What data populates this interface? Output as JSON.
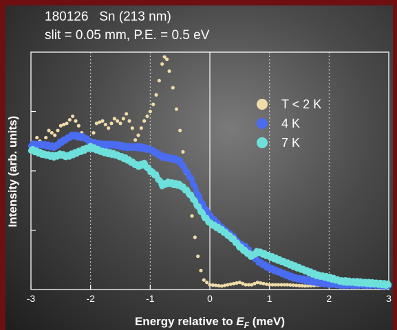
{
  "chart_data": {
    "type": "scatter",
    "header_line1": "180126   Sn (213 nm)",
    "header_line2": "slit = 0.05 mm, P.E. = 0.5 eV",
    "xlabel": "Energy relative to ",
    "xlabel_var": "E",
    "xlabel_sub": "F",
    "xlabel_unit": " (meV)",
    "ylabel": "Intensity (arb. units)",
    "xlim": [
      -3,
      3
    ],
    "ylim": [
      0,
      1
    ],
    "xticks": [
      "-3",
      "-2",
      "-1",
      "0",
      "1",
      "2",
      "3"
    ],
    "grid": "vertical dotted at each integer meV",
    "legend_placement": "top-right",
    "series": [
      {
        "name": "T < 2 K",
        "color": "#f0dcaa",
        "points": [
          [
            -3.0,
            0.6
          ],
          [
            -2.9,
            0.64
          ],
          [
            -2.8,
            0.61
          ],
          [
            -2.7,
            0.67
          ],
          [
            -2.6,
            0.65
          ],
          [
            -2.5,
            0.69
          ],
          [
            -2.4,
            0.7
          ],
          [
            -2.3,
            0.73
          ],
          [
            -2.2,
            0.69
          ],
          [
            -2.1,
            0.63
          ],
          [
            -2.0,
            0.62
          ],
          [
            -1.9,
            0.7
          ],
          [
            -1.8,
            0.71
          ],
          [
            -1.7,
            0.68
          ],
          [
            -1.6,
            0.72
          ],
          [
            -1.5,
            0.7
          ],
          [
            -1.4,
            0.74
          ],
          [
            -1.3,
            0.68
          ],
          [
            -1.25,
            0.63
          ],
          [
            -1.2,
            0.65
          ],
          [
            -1.1,
            0.71
          ],
          [
            -1.0,
            0.75
          ],
          [
            -0.95,
            0.78
          ],
          [
            -0.9,
            0.82
          ],
          [
            -0.85,
            0.88
          ],
          [
            -0.8,
            0.95
          ],
          [
            -0.76,
            0.98
          ],
          [
            -0.72,
            0.97
          ],
          [
            -0.68,
            0.92
          ],
          [
            -0.62,
            0.85
          ],
          [
            -0.56,
            0.76
          ],
          [
            -0.5,
            0.67
          ],
          [
            -0.45,
            0.58
          ],
          [
            -0.4,
            0.49
          ],
          [
            -0.35,
            0.4
          ],
          [
            -0.3,
            0.31
          ],
          [
            -0.25,
            0.22
          ],
          [
            -0.2,
            0.14
          ],
          [
            -0.15,
            0.08
          ],
          [
            -0.1,
            0.04
          ],
          [
            0.0,
            0.02
          ],
          [
            0.2,
            0.015
          ],
          [
            0.4,
            0.025
          ],
          [
            0.5,
            0.03
          ],
          [
            0.6,
            0.02
          ],
          [
            0.7,
            0.02
          ],
          [
            0.8,
            0.03
          ],
          [
            1.0,
            0.02
          ],
          [
            1.3,
            0.02
          ],
          [
            1.6,
            0.015
          ],
          [
            2.0,
            0.02
          ],
          [
            2.5,
            0.025
          ],
          [
            3.0,
            0.02
          ]
        ]
      },
      {
        "name": "4 K",
        "color": "#4a6cf0",
        "points": [
          [
            -3.0,
            0.61
          ],
          [
            -2.8,
            0.61
          ],
          [
            -2.6,
            0.6
          ],
          [
            -2.5,
            0.62
          ],
          [
            -2.3,
            0.65
          ],
          [
            -2.1,
            0.64
          ],
          [
            -2.0,
            0.62
          ],
          [
            -1.8,
            0.61
          ],
          [
            -1.6,
            0.61
          ],
          [
            -1.4,
            0.6
          ],
          [
            -1.2,
            0.6
          ],
          [
            -1.0,
            0.59
          ],
          [
            -0.8,
            0.56
          ],
          [
            -0.6,
            0.55
          ],
          [
            -0.5,
            0.54
          ],
          [
            -0.4,
            0.5
          ],
          [
            -0.3,
            0.46
          ],
          [
            -0.2,
            0.4
          ],
          [
            -0.1,
            0.35
          ],
          [
            0.0,
            0.31
          ],
          [
            0.2,
            0.26
          ],
          [
            0.4,
            0.22
          ],
          [
            0.5,
            0.19
          ],
          [
            0.6,
            0.18
          ],
          [
            0.7,
            0.15
          ],
          [
            0.8,
            0.12
          ],
          [
            1.0,
            0.09
          ],
          [
            1.2,
            0.07
          ],
          [
            1.4,
            0.05
          ],
          [
            1.6,
            0.04
          ],
          [
            1.8,
            0.03
          ],
          [
            2.0,
            0.025
          ],
          [
            2.2,
            0.02
          ],
          [
            2.5,
            0.02
          ],
          [
            2.8,
            0.02
          ],
          [
            3.0,
            0.015
          ]
        ]
      },
      {
        "name": "7 K",
        "color": "#6ee0dc",
        "points": [
          [
            -3.0,
            0.59
          ],
          [
            -2.8,
            0.57
          ],
          [
            -2.6,
            0.56
          ],
          [
            -2.5,
            0.57
          ],
          [
            -2.4,
            0.56
          ],
          [
            -2.2,
            0.58
          ],
          [
            -2.1,
            0.59
          ],
          [
            -2.0,
            0.6
          ],
          [
            -1.8,
            0.58
          ],
          [
            -1.6,
            0.57
          ],
          [
            -1.4,
            0.55
          ],
          [
            -1.2,
            0.52
          ],
          [
            -1.1,
            0.53
          ],
          [
            -1.0,
            0.5
          ],
          [
            -0.9,
            0.48
          ],
          [
            -0.8,
            0.44
          ],
          [
            -0.7,
            0.45
          ],
          [
            -0.5,
            0.44
          ],
          [
            -0.4,
            0.42
          ],
          [
            -0.3,
            0.39
          ],
          [
            -0.2,
            0.35
          ],
          [
            -0.1,
            0.31
          ],
          [
            0.0,
            0.28
          ],
          [
            0.2,
            0.25
          ],
          [
            0.4,
            0.21
          ],
          [
            0.5,
            0.18
          ],
          [
            0.6,
            0.16
          ],
          [
            0.7,
            0.14
          ],
          [
            0.8,
            0.16
          ],
          [
            0.9,
            0.15
          ],
          [
            1.0,
            0.14
          ],
          [
            1.2,
            0.12
          ],
          [
            1.4,
            0.1
          ],
          [
            1.6,
            0.08
          ],
          [
            1.8,
            0.06
          ],
          [
            2.0,
            0.05
          ],
          [
            2.2,
            0.035
          ],
          [
            2.5,
            0.03
          ],
          [
            2.8,
            0.025
          ],
          [
            3.0,
            0.02
          ]
        ]
      }
    ]
  }
}
